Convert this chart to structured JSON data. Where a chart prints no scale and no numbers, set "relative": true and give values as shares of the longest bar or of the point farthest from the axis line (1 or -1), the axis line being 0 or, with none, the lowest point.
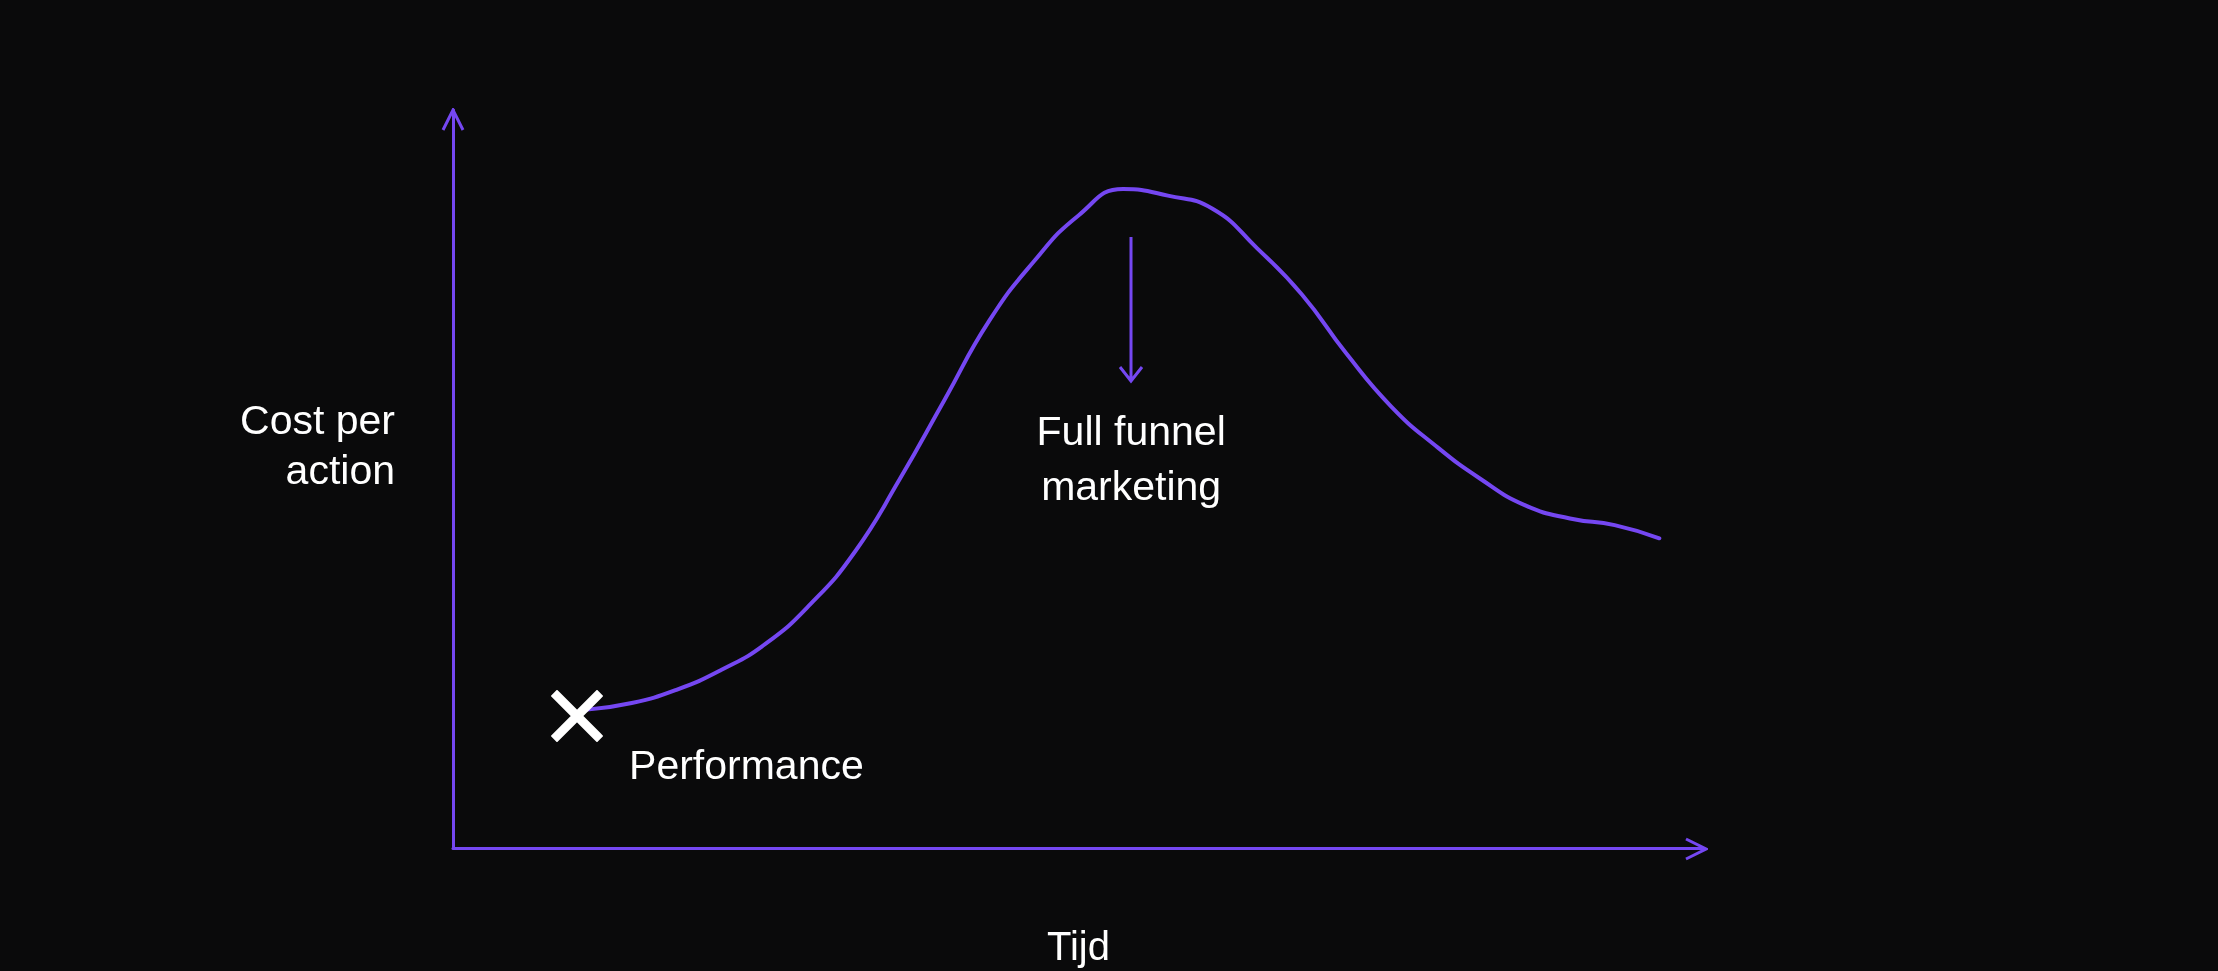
{
  "chart_data": {
    "type": "line",
    "relative": true,
    "xlabel": "Tijd",
    "ylabel": "Cost per action",
    "grid": false,
    "marker": "none",
    "categories": [
      null,
      null,
      null,
      null,
      null,
      null,
      null,
      null,
      null,
      null,
      null,
      null,
      null,
      null,
      null,
      null,
      null,
      null,
      null,
      null,
      null,
      null,
      null,
      null,
      null,
      null,
      null,
      null,
      null
    ],
    "series": [
      {
        "color": "#7547f2",
        "values": [
          null,
          null,
          null,
          0.21,
          0.22,
          0.24,
          0.27,
          0.31,
          0.37,
          0.45,
          0.56,
          0.68,
          0.8,
          0.89,
          0.96,
          1,
          0.99,
          0.97,
          0.91,
          0.84,
          0.75,
          0.67,
          0.61,
          0.56,
          0.52,
          0.5,
          0.49,
          0.47,
          null
        ]
      }
    ],
    "annotations": [
      "Performance",
      "Full funnel marketing"
    ]
  }
}
